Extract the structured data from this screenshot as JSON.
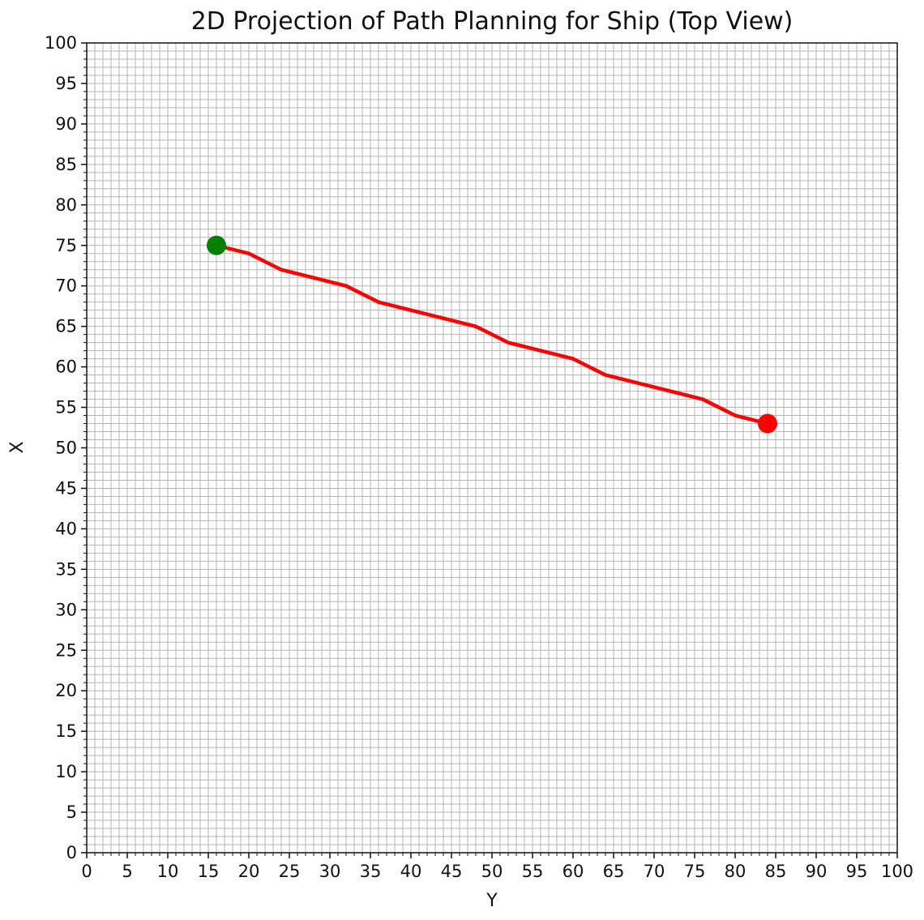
{
  "chart_data": {
    "type": "line",
    "title": "2D Projection of Path Planning for Ship (Top View)",
    "xlabel": "Y",
    "ylabel": "X",
    "xlim": [
      0,
      100
    ],
    "ylim": [
      0,
      100
    ],
    "major_tick_step": 5,
    "minor_grid_step": 1,
    "grid": true,
    "x_ticks": [
      "0",
      "5",
      "10",
      "15",
      "20",
      "25",
      "30",
      "35",
      "40",
      "45",
      "50",
      "55",
      "60",
      "65",
      "70",
      "75",
      "80",
      "85",
      "90",
      "95",
      "100"
    ],
    "y_ticks": [
      "0",
      "5",
      "10",
      "15",
      "20",
      "25",
      "30",
      "35",
      "40",
      "45",
      "50",
      "55",
      "60",
      "65",
      "70",
      "75",
      "80",
      "85",
      "90",
      "95",
      "100"
    ],
    "series": [
      {
        "color": "#ff0000",
        "x": [
          16,
          20,
          24,
          28,
          32,
          36,
          40,
          44,
          48,
          52,
          56,
          60,
          64,
          68,
          72,
          76,
          80,
          84
        ],
        "y": [
          75,
          74,
          72,
          71,
          70,
          68,
          67,
          66,
          65,
          63,
          62,
          61,
          59,
          58,
          57,
          56,
          54,
          53
        ]
      }
    ],
    "markers": [
      {
        "x": 16,
        "y": 75,
        "color": "#008000"
      },
      {
        "x": 84,
        "y": 53,
        "color": "#ff0000"
      }
    ]
  }
}
